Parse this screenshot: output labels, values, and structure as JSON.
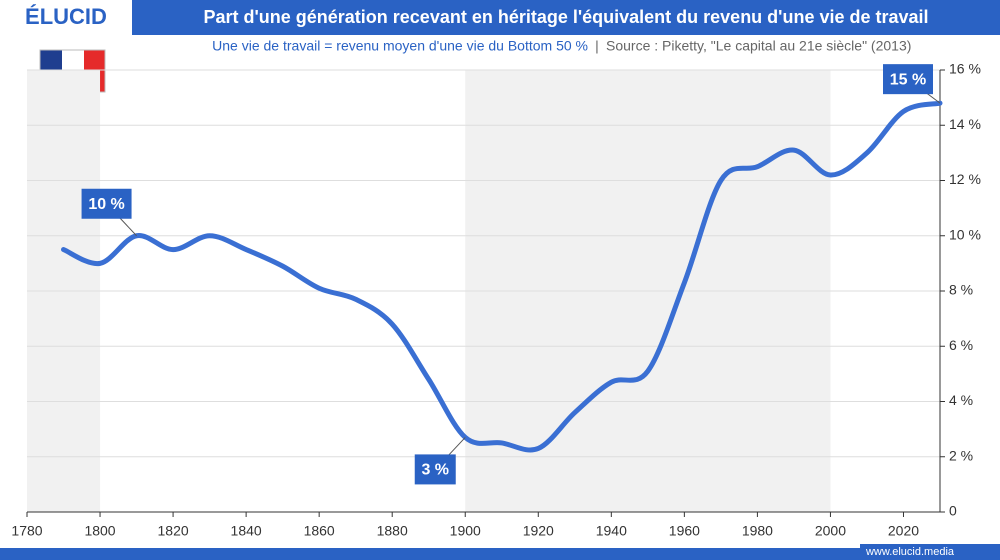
{
  "brand": "ÉLUCID",
  "footer": "www.elucid.media",
  "chart_data": {
    "type": "line",
    "title": "Part d'une génération recevant en héritage l'équivalent du revenu d'une vie de travail",
    "subtitle": "Une vie de travail = revenu moyen d'une vie du Bottom 50 %",
    "source": "Source : Piketty, \"Le capital au 21e siècle\" (2013)",
    "x": [
      1790,
      1800,
      1810,
      1820,
      1830,
      1840,
      1850,
      1860,
      1870,
      1880,
      1890,
      1900,
      1910,
      1920,
      1930,
      1940,
      1950,
      1960,
      1970,
      1980,
      1990,
      2000,
      2010,
      2020,
      2030
    ],
    "series": [
      {
        "name": "France",
        "color": "#3a6fd3",
        "values": [
          9.5,
          9.0,
          10.0,
          9.5,
          10.0,
          9.5,
          8.9,
          8.1,
          7.7,
          6.8,
          4.8,
          2.7,
          2.5,
          2.3,
          3.6,
          4.7,
          5.1,
          8.3,
          12.0,
          12.5,
          13.1,
          12.2,
          13.0,
          14.5,
          14.8
        ]
      }
    ],
    "xlim": [
      1780,
      2030
    ],
    "ylim": [
      0,
      16
    ],
    "xticks": [
      1780,
      1800,
      1820,
      1840,
      1860,
      1880,
      1900,
      1920,
      1940,
      1960,
      1980,
      2000,
      2020
    ],
    "yticks": [
      0,
      {
        "value": 2,
        "label": "2 %"
      },
      {
        "value": 4,
        "label": "4 %"
      },
      {
        "value": 6,
        "label": "6 %"
      },
      {
        "value": 8,
        "label": "8 %"
      },
      {
        "value": 10,
        "label": "10 %"
      },
      {
        "value": 12,
        "label": "12 %"
      },
      {
        "value": 14,
        "label": "14 %"
      },
      {
        "value": 16,
        "label": "16 %"
      }
    ],
    "grid": true,
    "shaded_ranges": [
      [
        1780,
        1800
      ],
      [
        1900,
        2000
      ]
    ],
    "annotations": [
      {
        "text": "10 %",
        "x": 1810,
        "y": 10
      },
      {
        "text": "3 %",
        "x": 1900,
        "y": 2.7
      },
      {
        "text": "15 %",
        "x": 2030,
        "y": 14.8
      }
    ]
  }
}
